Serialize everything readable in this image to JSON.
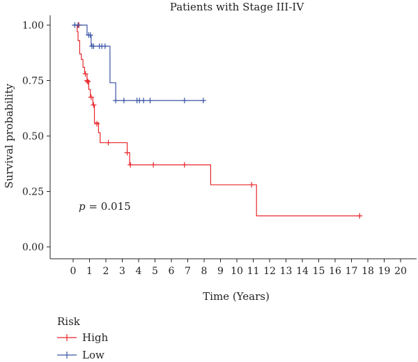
{
  "chart_data": {
    "type": "line",
    "title": "Patients with Stage III-IV",
    "xlabel": "Time (Years)",
    "ylabel": "Survival probability",
    "xlim": [
      0,
      20
    ],
    "ylim": [
      0,
      1
    ],
    "x_ticks": [
      "0",
      "1",
      "2",
      "3",
      "4",
      "5",
      "6",
      "7",
      "8",
      "9",
      "10",
      "11",
      "12",
      "13",
      "14",
      "15",
      "16",
      "17",
      "18",
      "19",
      "20"
    ],
    "y_ticks": [
      "0.00",
      "0.25",
      "0.50",
      "0.75",
      "1.00"
    ],
    "annotation": {
      "italic": "p",
      "rest": " = 0.015",
      "x": 0.35,
      "y": 0.18
    },
    "legend": {
      "title": "Risk",
      "position": "bottom-left"
    },
    "series": [
      {
        "name": "High",
        "color": "#e8262b",
        "steps": [
          [
            0,
            1.0
          ],
          [
            0.25,
            0.97
          ],
          [
            0.3,
            0.93
          ],
          [
            0.4,
            0.87
          ],
          [
            0.5,
            0.845
          ],
          [
            0.6,
            0.81
          ],
          [
            0.7,
            0.78
          ],
          [
            0.85,
            0.75
          ],
          [
            0.95,
            0.71
          ],
          [
            1.05,
            0.675
          ],
          [
            1.2,
            0.64
          ],
          [
            1.3,
            0.56
          ],
          [
            1.55,
            0.515
          ],
          [
            1.65,
            0.47
          ],
          [
            3.3,
            0.425
          ],
          [
            3.45,
            0.37
          ],
          [
            8.4,
            0.28
          ],
          [
            11.2,
            0.14
          ],
          [
            17.5,
            0.14
          ]
        ],
        "censor": [
          [
            0.35,
            1.0
          ],
          [
            0.75,
            0.78
          ],
          [
            0.85,
            0.75
          ],
          [
            0.9,
            0.745
          ],
          [
            1.1,
            0.675
          ],
          [
            1.25,
            0.64
          ],
          [
            1.45,
            0.555
          ],
          [
            2.15,
            0.47
          ],
          [
            3.3,
            0.425
          ],
          [
            3.5,
            0.37
          ],
          [
            4.9,
            0.37
          ],
          [
            6.8,
            0.37
          ],
          [
            10.9,
            0.28
          ],
          [
            17.5,
            0.14
          ]
        ]
      },
      {
        "name": "Low",
        "color": "#3953a4",
        "steps": [
          [
            0,
            1.0
          ],
          [
            0.85,
            0.955
          ],
          [
            1.1,
            0.905
          ],
          [
            2.25,
            0.74
          ],
          [
            2.6,
            0.66
          ],
          [
            8.0,
            0.66
          ]
        ],
        "censor": [
          [
            0.1,
            1.0
          ],
          [
            0.3,
            1.0
          ],
          [
            0.95,
            0.955
          ],
          [
            1.05,
            0.955
          ],
          [
            1.15,
            0.905
          ],
          [
            1.25,
            0.905
          ],
          [
            1.6,
            0.905
          ],
          [
            1.75,
            0.905
          ],
          [
            1.95,
            0.905
          ],
          [
            2.6,
            0.66
          ],
          [
            3.1,
            0.66
          ],
          [
            3.9,
            0.66
          ],
          [
            4.05,
            0.66
          ],
          [
            4.3,
            0.66
          ],
          [
            4.7,
            0.66
          ],
          [
            6.8,
            0.66
          ],
          [
            7.95,
            0.66
          ]
        ]
      }
    ]
  }
}
